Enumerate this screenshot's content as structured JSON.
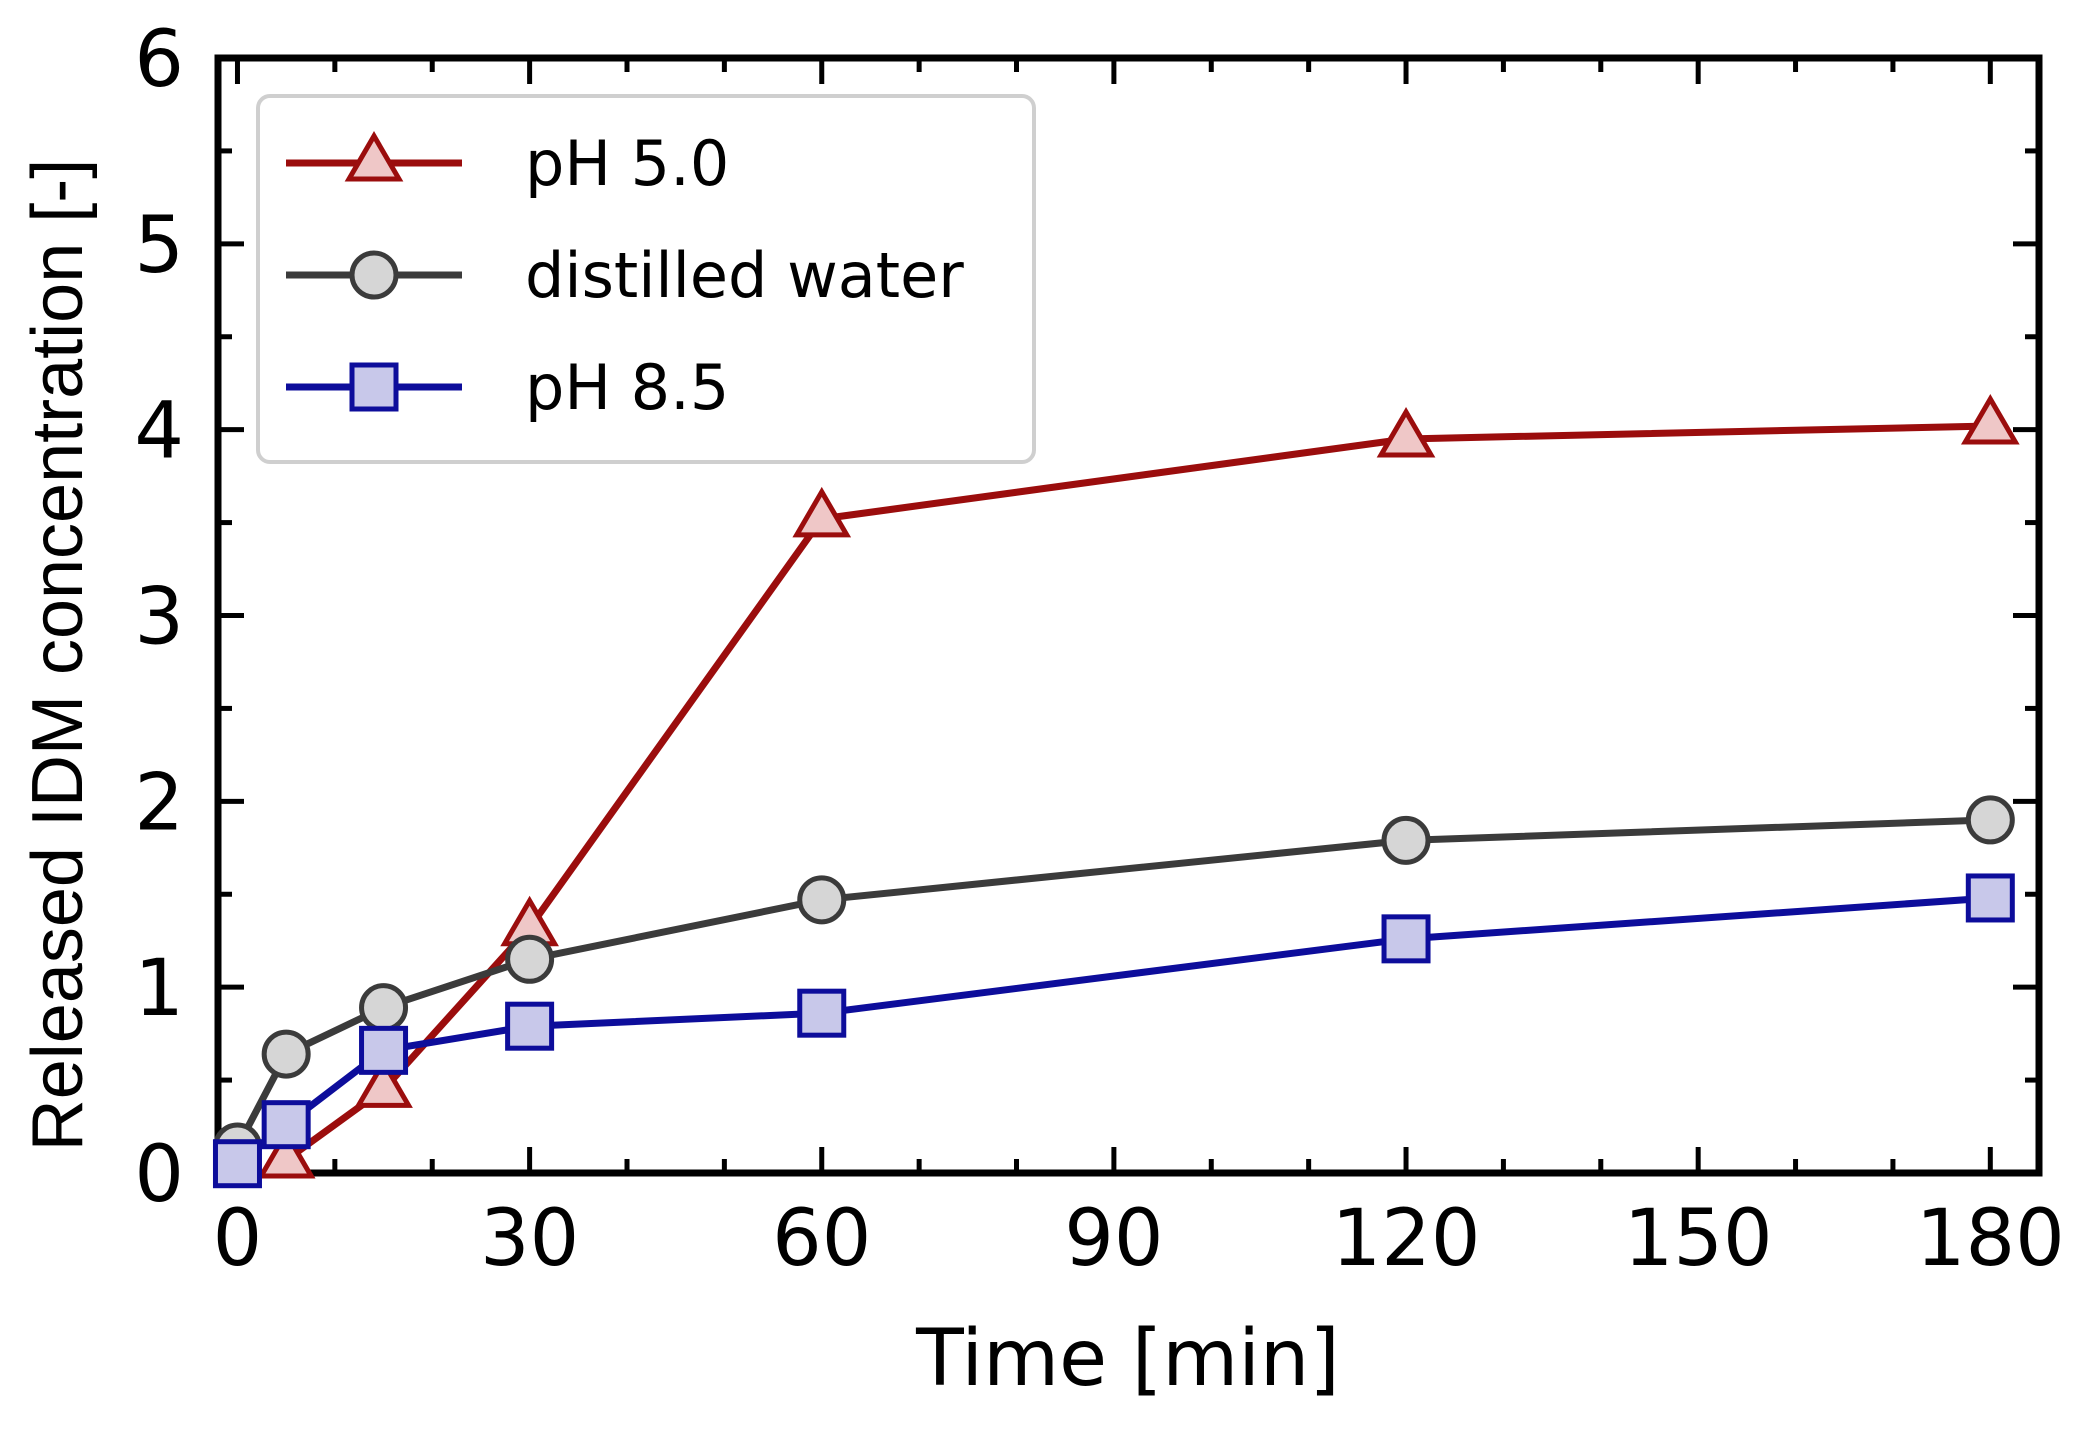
{
  "chart_data": {
    "type": "line",
    "title": "",
    "xlabel": "Time [min]",
    "ylabel": "Released IDM concentration [-]",
    "xlim": [
      -2,
      185
    ],
    "ylim": [
      0,
      6
    ],
    "xticks": [
      0,
      30,
      60,
      90,
      120,
      150,
      180
    ],
    "yticks": [
      0,
      1,
      2,
      3,
      4,
      5,
      6
    ],
    "minor_xtick_step": 10,
    "minor_ytick_step": 0.5,
    "grid": false,
    "legend_position": "top-left",
    "series": [
      {
        "name": "pH 5.0",
        "marker": "triangle",
        "line_color": "#9b0d0d",
        "fill_color": "#efc7c7",
        "x": [
          5,
          15,
          30,
          60,
          120,
          180
        ],
        "y": [
          0.07,
          0.45,
          1.32,
          3.52,
          3.95,
          4.02
        ]
      },
      {
        "name": "distilled water",
        "marker": "circle",
        "line_color": "#3b3b3b",
        "fill_color": "#d6d6d6",
        "x": [
          0,
          5,
          15,
          30,
          60,
          120,
          180
        ],
        "y": [
          0.14,
          0.64,
          0.89,
          1.15,
          1.47,
          1.79,
          1.9
        ]
      },
      {
        "name": "pH 8.5",
        "marker": "square",
        "line_color": "#0d0d9b",
        "fill_color": "#c8c8ea",
        "x": [
          0,
          5,
          15,
          30,
          60,
          120,
          180
        ],
        "y": [
          0.05,
          0.26,
          0.66,
          0.79,
          0.86,
          1.26,
          1.48
        ]
      }
    ]
  }
}
